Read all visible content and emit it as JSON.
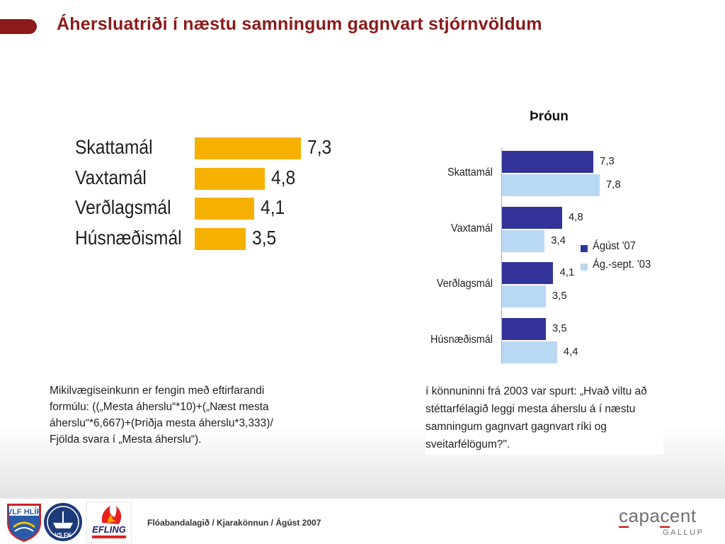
{
  "page": {
    "title": "Áhersluatriði í næstu samningum gagnvart stjórnvöldum",
    "accent_color": "#8b1a1a"
  },
  "chart_data": [
    {
      "type": "bar",
      "orientation": "horizontal",
      "categories": [
        "Skattamál",
        "Vaxtamál",
        "Verðlagsmál",
        "Húsnæðismál"
      ],
      "values": [
        7.3,
        4.8,
        4.1,
        3.5
      ],
      "value_labels": [
        "7,3",
        "4,8",
        "4,1",
        "3,5"
      ],
      "color": "#f5b000",
      "xlim": [
        0,
        8
      ]
    },
    {
      "type": "bar",
      "orientation": "horizontal",
      "title": "Þróun",
      "categories": [
        "Skattamál",
        "Vaxtamál",
        "Verðlagsmál",
        "Húsnæðismál"
      ],
      "series": [
        {
          "name": "Ágúst '07",
          "values": [
            7.3,
            4.8,
            4.1,
            3.5
          ],
          "value_labels": [
            "7,3",
            "4,8",
            "4,1",
            "3,5"
          ],
          "color": "#33339a"
        },
        {
          "name": "Ág.-sept. '03",
          "values": [
            7.8,
            3.4,
            3.5,
            4.4
          ],
          "value_labels": [
            "7,8",
            "3,4",
            "3,5",
            "4,4"
          ],
          "color": "#b8d8f4"
        }
      ],
      "legend": "right",
      "xlim": [
        0,
        8.5
      ]
    }
  ],
  "notes": {
    "left": "Mikilvægiseinkunn er fengin með eftirfarandi formúlu: ((„Mesta áherslu“*10)+(„Næst mesta áherslu“*6,667)+(Þriðja mesta áherslu*3,333)/ Fjölda svara í „Mesta áherslu“).",
    "right": "í könnuninni frá 2003 var spurt: „Hvað viltu að stéttarfélagið leggi mesta áherslu á í næstu samningum gagnvart gagnvart ríki og sveitarfélögum?\"."
  },
  "footer": {
    "text": "Flóabandalagið  / Kjarakönnun / Ágúst 2007",
    "logos": [
      {
        "name": "VLF Hlíf",
        "text": "VLF HLÍF"
      },
      {
        "name": "VSFK",
        "text": "VS FK"
      },
      {
        "name": "Efling",
        "text": "EFLING"
      }
    ],
    "brand": "capacent",
    "brand_sub": "GALLUP"
  }
}
